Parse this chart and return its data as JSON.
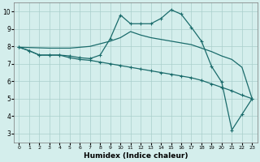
{
  "xlabel": "Humidex (Indice chaleur)",
  "bg_color": "#d4eeec",
  "grid_color": "#aacfcc",
  "line_color": "#1a6b6b",
  "xlim": [
    -0.5,
    23.5
  ],
  "ylim": [
    2.5,
    10.5
  ],
  "xticks": [
    0,
    1,
    2,
    3,
    4,
    5,
    6,
    7,
    8,
    9,
    10,
    11,
    12,
    13,
    14,
    15,
    16,
    17,
    18,
    19,
    20,
    21,
    22,
    23
  ],
  "yticks": [
    3,
    4,
    5,
    6,
    7,
    8,
    9,
    10
  ],
  "line_smooth_upper": {
    "x": [
      0,
      3,
      5,
      7,
      9,
      10,
      11,
      12,
      13,
      14,
      15,
      16,
      17,
      18,
      19,
      20,
      21,
      22,
      23
    ],
    "y": [
      7.95,
      7.9,
      7.9,
      8.0,
      8.3,
      8.5,
      8.85,
      8.65,
      8.5,
      8.4,
      8.3,
      8.2,
      8.1,
      7.9,
      7.7,
      7.45,
      7.25,
      6.8,
      5.0
    ]
  },
  "line_peaked": {
    "x": [
      0,
      1,
      2,
      3,
      4,
      5,
      6,
      7,
      8,
      9,
      10,
      11,
      12,
      13,
      14,
      15,
      16,
      17,
      18,
      19,
      20,
      21,
      22,
      23
    ],
    "y": [
      7.95,
      7.75,
      7.5,
      7.5,
      7.5,
      7.45,
      7.35,
      7.3,
      7.5,
      8.45,
      9.8,
      9.3,
      9.3,
      9.3,
      9.6,
      10.1,
      9.85,
      9.1,
      8.3,
      6.85,
      5.95,
      3.2,
      4.1,
      5.0
    ]
  },
  "line_bottom": {
    "x": [
      0,
      1,
      2,
      3,
      4,
      5,
      6,
      7,
      8,
      9,
      10,
      11,
      12,
      13,
      14,
      15,
      16,
      17,
      18,
      19,
      20,
      21,
      22,
      23
    ],
    "y": [
      7.95,
      7.75,
      7.5,
      7.5,
      7.5,
      7.35,
      7.25,
      7.2,
      7.1,
      7.0,
      6.9,
      6.8,
      6.7,
      6.6,
      6.5,
      6.4,
      6.3,
      6.2,
      6.05,
      5.85,
      5.65,
      5.45,
      5.2,
      5.0
    ]
  }
}
